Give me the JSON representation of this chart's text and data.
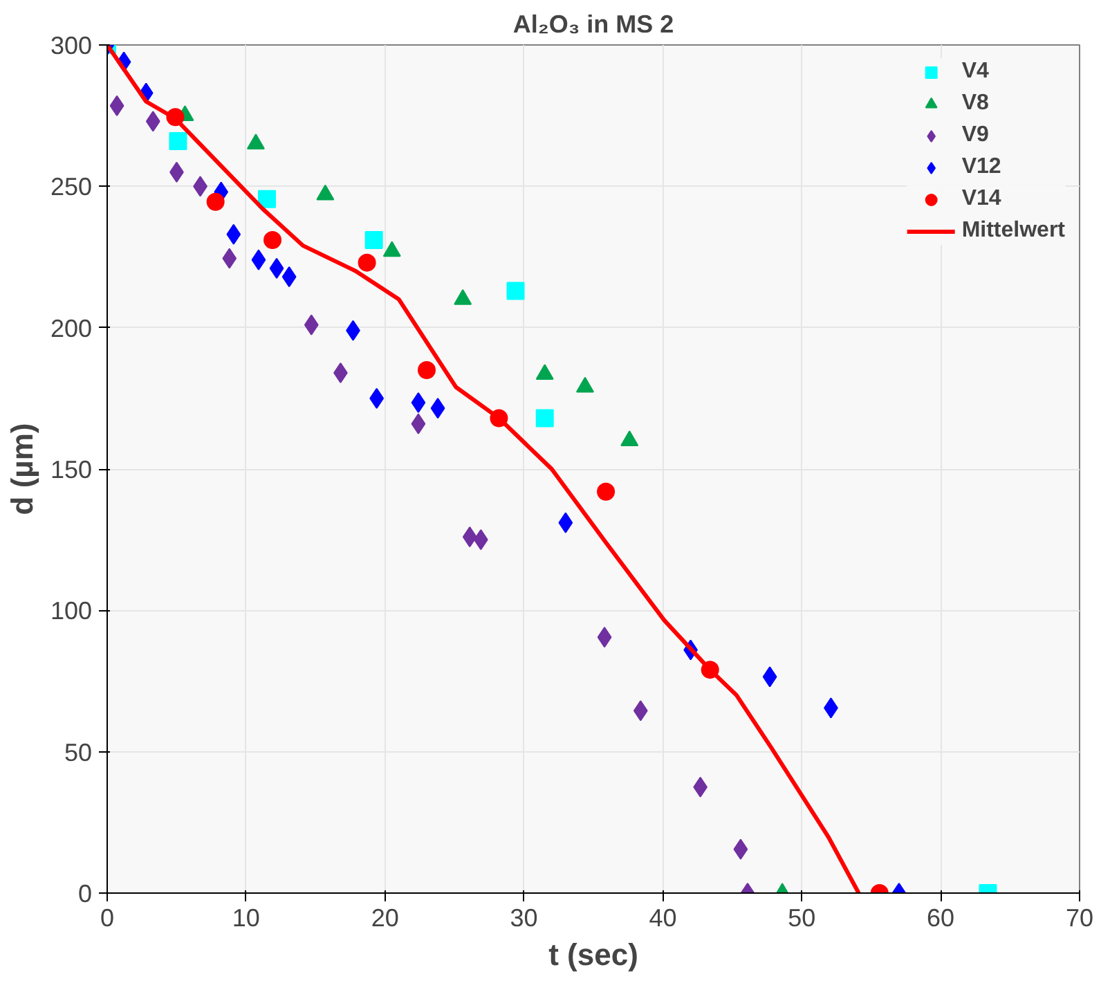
{
  "chart_data": {
    "type": "scatter",
    "title": "Al₂O₃ in MS 2",
    "xlabel": "t (sec)",
    "ylabel": "d (µm)",
    "xlim": [
      0,
      70
    ],
    "xticks": [
      0,
      10,
      20,
      30,
      40,
      50,
      60,
      70
    ],
    "ylim": [
      0,
      300
    ],
    "yticks": [
      0,
      50,
      100,
      150,
      200,
      250,
      300
    ],
    "grid": true,
    "legend": "top right",
    "series": [
      {
        "name": "V4",
        "color": "#00ffff",
        "marker": "square",
        "x": [
          0,
          5.1,
          11.5,
          19.2,
          29.4,
          31.5,
          63.4
        ],
        "values": [
          300,
          266,
          245.5,
          231,
          213,
          168,
          0
        ]
      },
      {
        "name": "V8",
        "color": "#00a550",
        "marker": "triangle",
        "x": [
          5.6,
          10.7,
          15.7,
          20.5,
          25.6,
          31.5,
          34.4,
          37.6,
          48.6
        ],
        "values": [
          275,
          265,
          247,
          227,
          210,
          183.5,
          179,
          160,
          0
        ]
      },
      {
        "name": "V9",
        "color": "#7030a0",
        "marker": "diamond",
        "x": [
          0.7,
          3.3,
          5.0,
          6.7,
          8.8,
          14.7,
          16.8,
          22.4,
          26.1,
          26.9,
          35.8,
          38.4,
          42.7,
          45.6,
          46.1
        ],
        "values": [
          278.5,
          273,
          255,
          250,
          224.5,
          201,
          184,
          166,
          126,
          125,
          90.5,
          64.5,
          37.5,
          15.5,
          0
        ]
      },
      {
        "name": "V12",
        "color": "#0000ff",
        "marker": "diamond",
        "x": [
          0,
          1.2,
          2.8,
          8.2,
          9.1,
          10.9,
          12.2,
          13.1,
          17.7,
          19.4,
          22.4,
          23.8,
          33.0,
          42.0,
          47.7,
          52.1,
          57.0
        ],
        "values": [
          300,
          294,
          283,
          248,
          233,
          224,
          221,
          218,
          199,
          175,
          173.5,
          171.5,
          131,
          86,
          76.5,
          65.5,
          0
        ]
      },
      {
        "name": "V14",
        "color": "#ff0000",
        "marker": "circle",
        "x": [
          4.9,
          7.8,
          11.9,
          18.7,
          23.0,
          28.2,
          35.9,
          43.4,
          55.6
        ],
        "values": [
          274.5,
          244.5,
          231,
          223,
          185,
          168,
          142,
          79,
          0
        ]
      },
      {
        "name": "Mittelwert",
        "type": "line",
        "color": "#ff0000",
        "marker": "none",
        "line_style": "solid",
        "x": [
          0,
          2.8,
          4.9,
          11.2,
          14.1,
          17.9,
          21.0,
          25.1,
          28.2,
          32.0,
          35.9,
          40.1,
          43.4,
          45.3,
          47.8,
          51.9,
          54.1
        ],
        "values": [
          300,
          280,
          274,
          242,
          229,
          220,
          210,
          179,
          168,
          150,
          124,
          96.5,
          79,
          70,
          51.5,
          20,
          0
        ]
      }
    ]
  }
}
